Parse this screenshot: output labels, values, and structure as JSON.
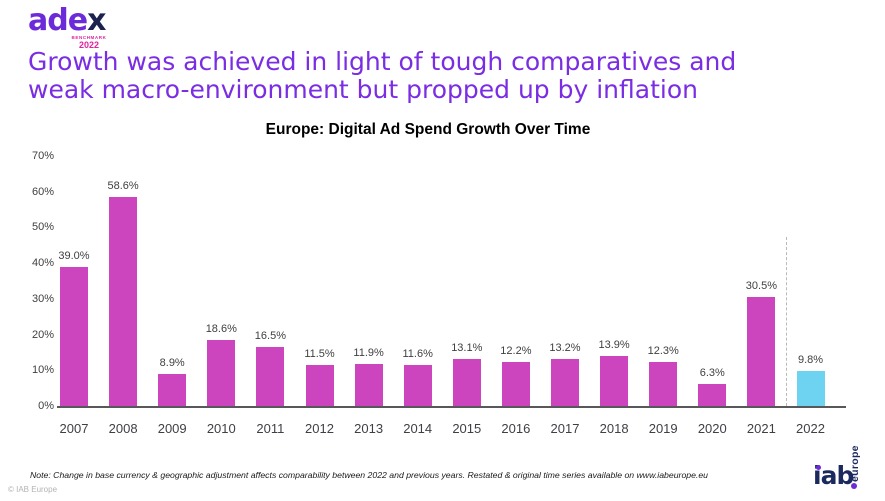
{
  "header": {
    "logo": {
      "brand_main": "ade",
      "brand_x": "x",
      "benchmark_label": "BENCHMARK",
      "benchmark_year": "2022"
    },
    "headline_line1": "Growth was achieved in light of tough comparatives and",
    "headline_line2": "weak macro-environment but propped up by inflation"
  },
  "chart_data": {
    "type": "bar",
    "title": "Europe: Digital Ad Spend Growth Over Time",
    "categories": [
      "2007",
      "2008",
      "2009",
      "2010",
      "2011",
      "2012",
      "2013",
      "2014",
      "2015",
      "2016",
      "2017",
      "2018",
      "2019",
      "2020",
      "2021",
      "2022"
    ],
    "values": [
      39.0,
      58.6,
      8.9,
      18.6,
      16.5,
      11.5,
      11.9,
      11.6,
      13.1,
      12.2,
      13.2,
      13.9,
      12.3,
      6.3,
      30.5,
      9.8
    ],
    "value_labels": [
      "39.0%",
      "58.6%",
      "8.9%",
      "18.6%",
      "16.5%",
      "11.5%",
      "11.9%",
      "11.6%",
      "13.1%",
      "12.2%",
      "13.2%",
      "13.9%",
      "12.3%",
      "6.3%",
      "30.5%",
      "9.8%"
    ],
    "ytick_labels": [
      "0%",
      "10%",
      "20%",
      "30%",
      "40%",
      "50%",
      "60%",
      "70%"
    ],
    "ylim": [
      0,
      70
    ],
    "xlabel": "",
    "ylabel": "",
    "grid": false,
    "legend": "none",
    "bar_color": "#cc44be",
    "highlight_color": "#6ed3f1",
    "highlight_index": 15,
    "separator_before_index": 15
  },
  "footer": {
    "note": "Note: Change in base currency & geographic adjustment affects comparability between 2022 and previous years. Restated & original time series available on www.iabeurope.eu",
    "copyright": "© IAB Europe",
    "iab_logo": {
      "brand": "iab",
      "vertical_text": "europe"
    }
  },
  "colors": {
    "headline": "#7a2de2",
    "adex_purple": "#6c2bd9",
    "adex_navy": "#1c2150",
    "benchmark_magenta": "#e0219e",
    "axis_line": "#58585a",
    "label_text": "#404040",
    "iab_navy": "#1b2a5e"
  }
}
